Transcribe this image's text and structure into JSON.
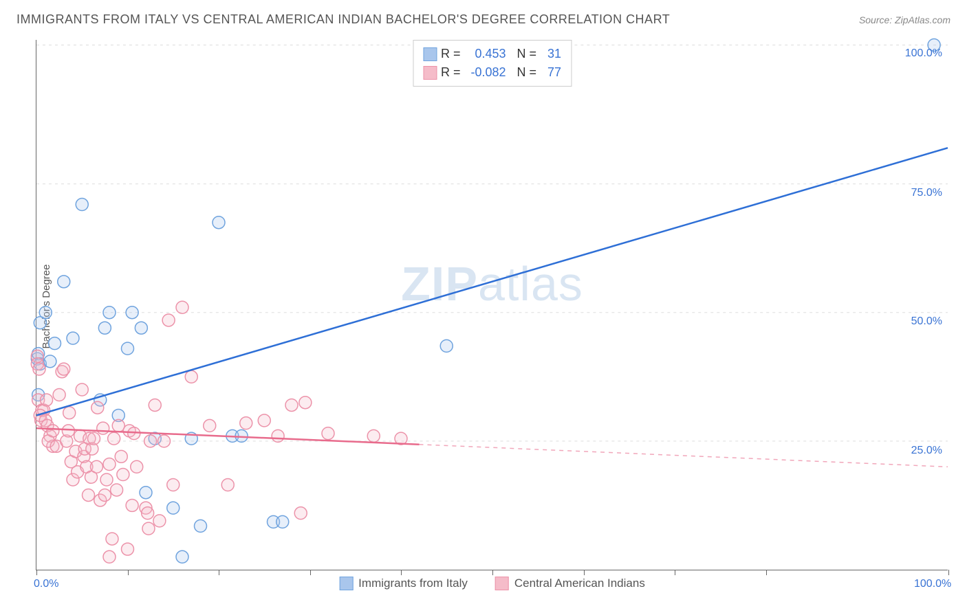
{
  "title": "IMMIGRANTS FROM ITALY VS CENTRAL AMERICAN INDIAN BACHELOR'S DEGREE CORRELATION CHART",
  "source_label": "Source: ",
  "source_value": "ZipAtlas.com",
  "ylabel": "Bachelor's Degree",
  "watermark": {
    "part1": "ZIP",
    "part2": "atlas"
  },
  "chart": {
    "type": "scatter",
    "xlim": [
      0,
      100
    ],
    "ylim": [
      0,
      103
    ],
    "background_color": "#ffffff",
    "grid_color": "#dddddd",
    "axis_color": "#666666",
    "tick_label_color": "#3973d4",
    "tick_fontsize": 16,
    "y_gridlines": [
      25,
      50,
      75,
      102
    ],
    "y_tick_labels": [
      "25.0%",
      "50.0%",
      "75.0%",
      "100.0%"
    ],
    "x_tick_positions": [
      0,
      10,
      20,
      30,
      40,
      50,
      60,
      70,
      80,
      100
    ],
    "x_tick_labels": {
      "0": "0.0%",
      "100": "100.0%"
    },
    "marker_radius": 9,
    "marker_fill_opacity": 0.28,
    "marker_stroke_width": 1.5,
    "trend_line_width": 2.5,
    "trend_dash_pattern": "6,6"
  },
  "series": [
    {
      "id": "italy",
      "label": "Immigrants from Italy",
      "color_fill": "#a9c6ec",
      "color_stroke": "#6fa3de",
      "line_color": "#2e6fd6",
      "r_label": "R =",
      "r_value": "0.453",
      "n_label": "N =",
      "n_value": "31",
      "trend": {
        "x1": 0,
        "y1": 30,
        "x2": 100,
        "y2": 82,
        "solid_until_x": 100
      },
      "points": [
        [
          0.1,
          41
        ],
        [
          0.2,
          42
        ],
        [
          0.4,
          40
        ],
        [
          0.2,
          34
        ],
        [
          0.4,
          48
        ],
        [
          1.0,
          50
        ],
        [
          1.5,
          40.5
        ],
        [
          2.0,
          44
        ],
        [
          3.0,
          56
        ],
        [
          4.0,
          45
        ],
        [
          5.0,
          71
        ],
        [
          7.0,
          33
        ],
        [
          8.0,
          50
        ],
        [
          7.5,
          47
        ],
        [
          9.0,
          30
        ],
        [
          10.0,
          43
        ],
        [
          10.5,
          50
        ],
        [
          11.5,
          47
        ],
        [
          12.0,
          15
        ],
        [
          13.0,
          25.5
        ],
        [
          15.0,
          12
        ],
        [
          16.0,
          2.5
        ],
        [
          17.0,
          25.5
        ],
        [
          18.0,
          8.5
        ],
        [
          20.0,
          67.5
        ],
        [
          21.5,
          26
        ],
        [
          22.5,
          26
        ],
        [
          26.0,
          9.3
        ],
        [
          27.0,
          9.3
        ],
        [
          45.0,
          43.5
        ],
        [
          98.5,
          102
        ]
      ]
    },
    {
      "id": "cai",
      "label": "Central American Indians",
      "color_fill": "#f5bcc9",
      "color_stroke": "#ec92a9",
      "line_color": "#e86b8c",
      "r_label": "R =",
      "r_value": "-0.082",
      "n_label": "N =",
      "n_value": "77",
      "trend": {
        "x1": 0,
        "y1": 27.5,
        "x2": 100,
        "y2": 20,
        "solid_until_x": 42
      },
      "points": [
        [
          0.1,
          41.5
        ],
        [
          0.1,
          40
        ],
        [
          0.3,
          39
        ],
        [
          0.2,
          33
        ],
        [
          0.6,
          31
        ],
        [
          0.5,
          29
        ],
        [
          0.8,
          31
        ],
        [
          0.4,
          30
        ],
        [
          1.0,
          29
        ],
        [
          1.2,
          28
        ],
        [
          1.1,
          33
        ],
        [
          1.5,
          26
        ],
        [
          1.8,
          24
        ],
        [
          1.3,
          25
        ],
        [
          2.2,
          24
        ],
        [
          1.8,
          27
        ],
        [
          2.5,
          34
        ],
        [
          2.8,
          38.5
        ],
        [
          3.0,
          39
        ],
        [
          3.3,
          25
        ],
        [
          3.5,
          27
        ],
        [
          3.6,
          30.5
        ],
        [
          3.8,
          21
        ],
        [
          4.0,
          17.5
        ],
        [
          4.3,
          23
        ],
        [
          4.5,
          19
        ],
        [
          4.8,
          26
        ],
        [
          5.0,
          35
        ],
        [
          5.2,
          22
        ],
        [
          5.3,
          23.5
        ],
        [
          5.5,
          20
        ],
        [
          5.7,
          14.5
        ],
        [
          5.8,
          25.5
        ],
        [
          6.0,
          18
        ],
        [
          6.1,
          23.5
        ],
        [
          6.3,
          25.5
        ],
        [
          6.6,
          20
        ],
        [
          6.7,
          31.5
        ],
        [
          7.0,
          13.5
        ],
        [
          7.3,
          27.5
        ],
        [
          7.5,
          14.5
        ],
        [
          7.7,
          17.5
        ],
        [
          8.0,
          20.5
        ],
        [
          8.0,
          2.5
        ],
        [
          8.3,
          6
        ],
        [
          8.5,
          25.5
        ],
        [
          8.8,
          15.5
        ],
        [
          9.0,
          28
        ],
        [
          9.3,
          22
        ],
        [
          9.5,
          18.5
        ],
        [
          10.0,
          4
        ],
        [
          10.2,
          27
        ],
        [
          10.5,
          12.5
        ],
        [
          10.7,
          26.5
        ],
        [
          11.0,
          20
        ],
        [
          12.0,
          12
        ],
        [
          12.2,
          11
        ],
        [
          12.3,
          8
        ],
        [
          12.5,
          25
        ],
        [
          13.0,
          32
        ],
        [
          13.5,
          9.5
        ],
        [
          14.0,
          25
        ],
        [
          14.5,
          48.5
        ],
        [
          15.0,
          16.5
        ],
        [
          16.0,
          51
        ],
        [
          17.0,
          37.5
        ],
        [
          19.0,
          28
        ],
        [
          21.0,
          16.5
        ],
        [
          23.0,
          28.5
        ],
        [
          25.0,
          29
        ],
        [
          26.5,
          26
        ],
        [
          28.0,
          32
        ],
        [
          29.5,
          32.5
        ],
        [
          29.0,
          11
        ],
        [
          32.0,
          26.5
        ],
        [
          37.0,
          26
        ],
        [
          40.0,
          25.5
        ]
      ]
    }
  ]
}
